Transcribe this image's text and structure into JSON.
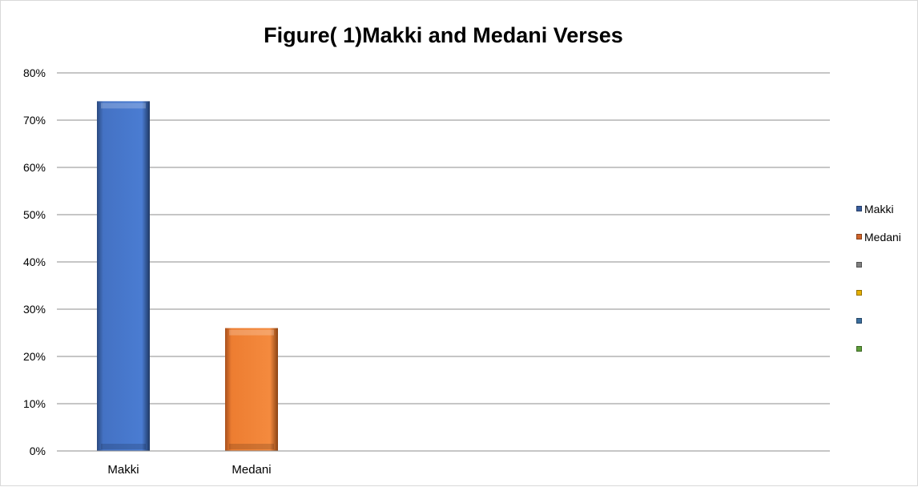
{
  "chart_data": {
    "type": "bar",
    "title": "Figure( 1)Makki and Medani Verses",
    "categories": [
      "Makki",
      "Medani"
    ],
    "values": [
      74,
      26
    ],
    "value_format": "percent",
    "ylim": [
      0,
      80
    ],
    "yticks": [
      "0%",
      "10%",
      "20%",
      "30%",
      "40%",
      "50%",
      "60%",
      "70%",
      "80%"
    ],
    "grid": true,
    "legend_position": "right",
    "colors": [
      "#4472C4",
      "#ED7D31"
    ],
    "legend": [
      {
        "label": "Makki",
        "color": "#3A5E9E"
      },
      {
        "label": "Medani",
        "color": "#D0642A"
      },
      {
        "label": "",
        "color": "#7F7F7F"
      },
      {
        "label": "",
        "color": "#E6B000"
      },
      {
        "label": "",
        "color": "#3B6E9E"
      },
      {
        "label": "",
        "color": "#5E9E3A"
      }
    ]
  }
}
